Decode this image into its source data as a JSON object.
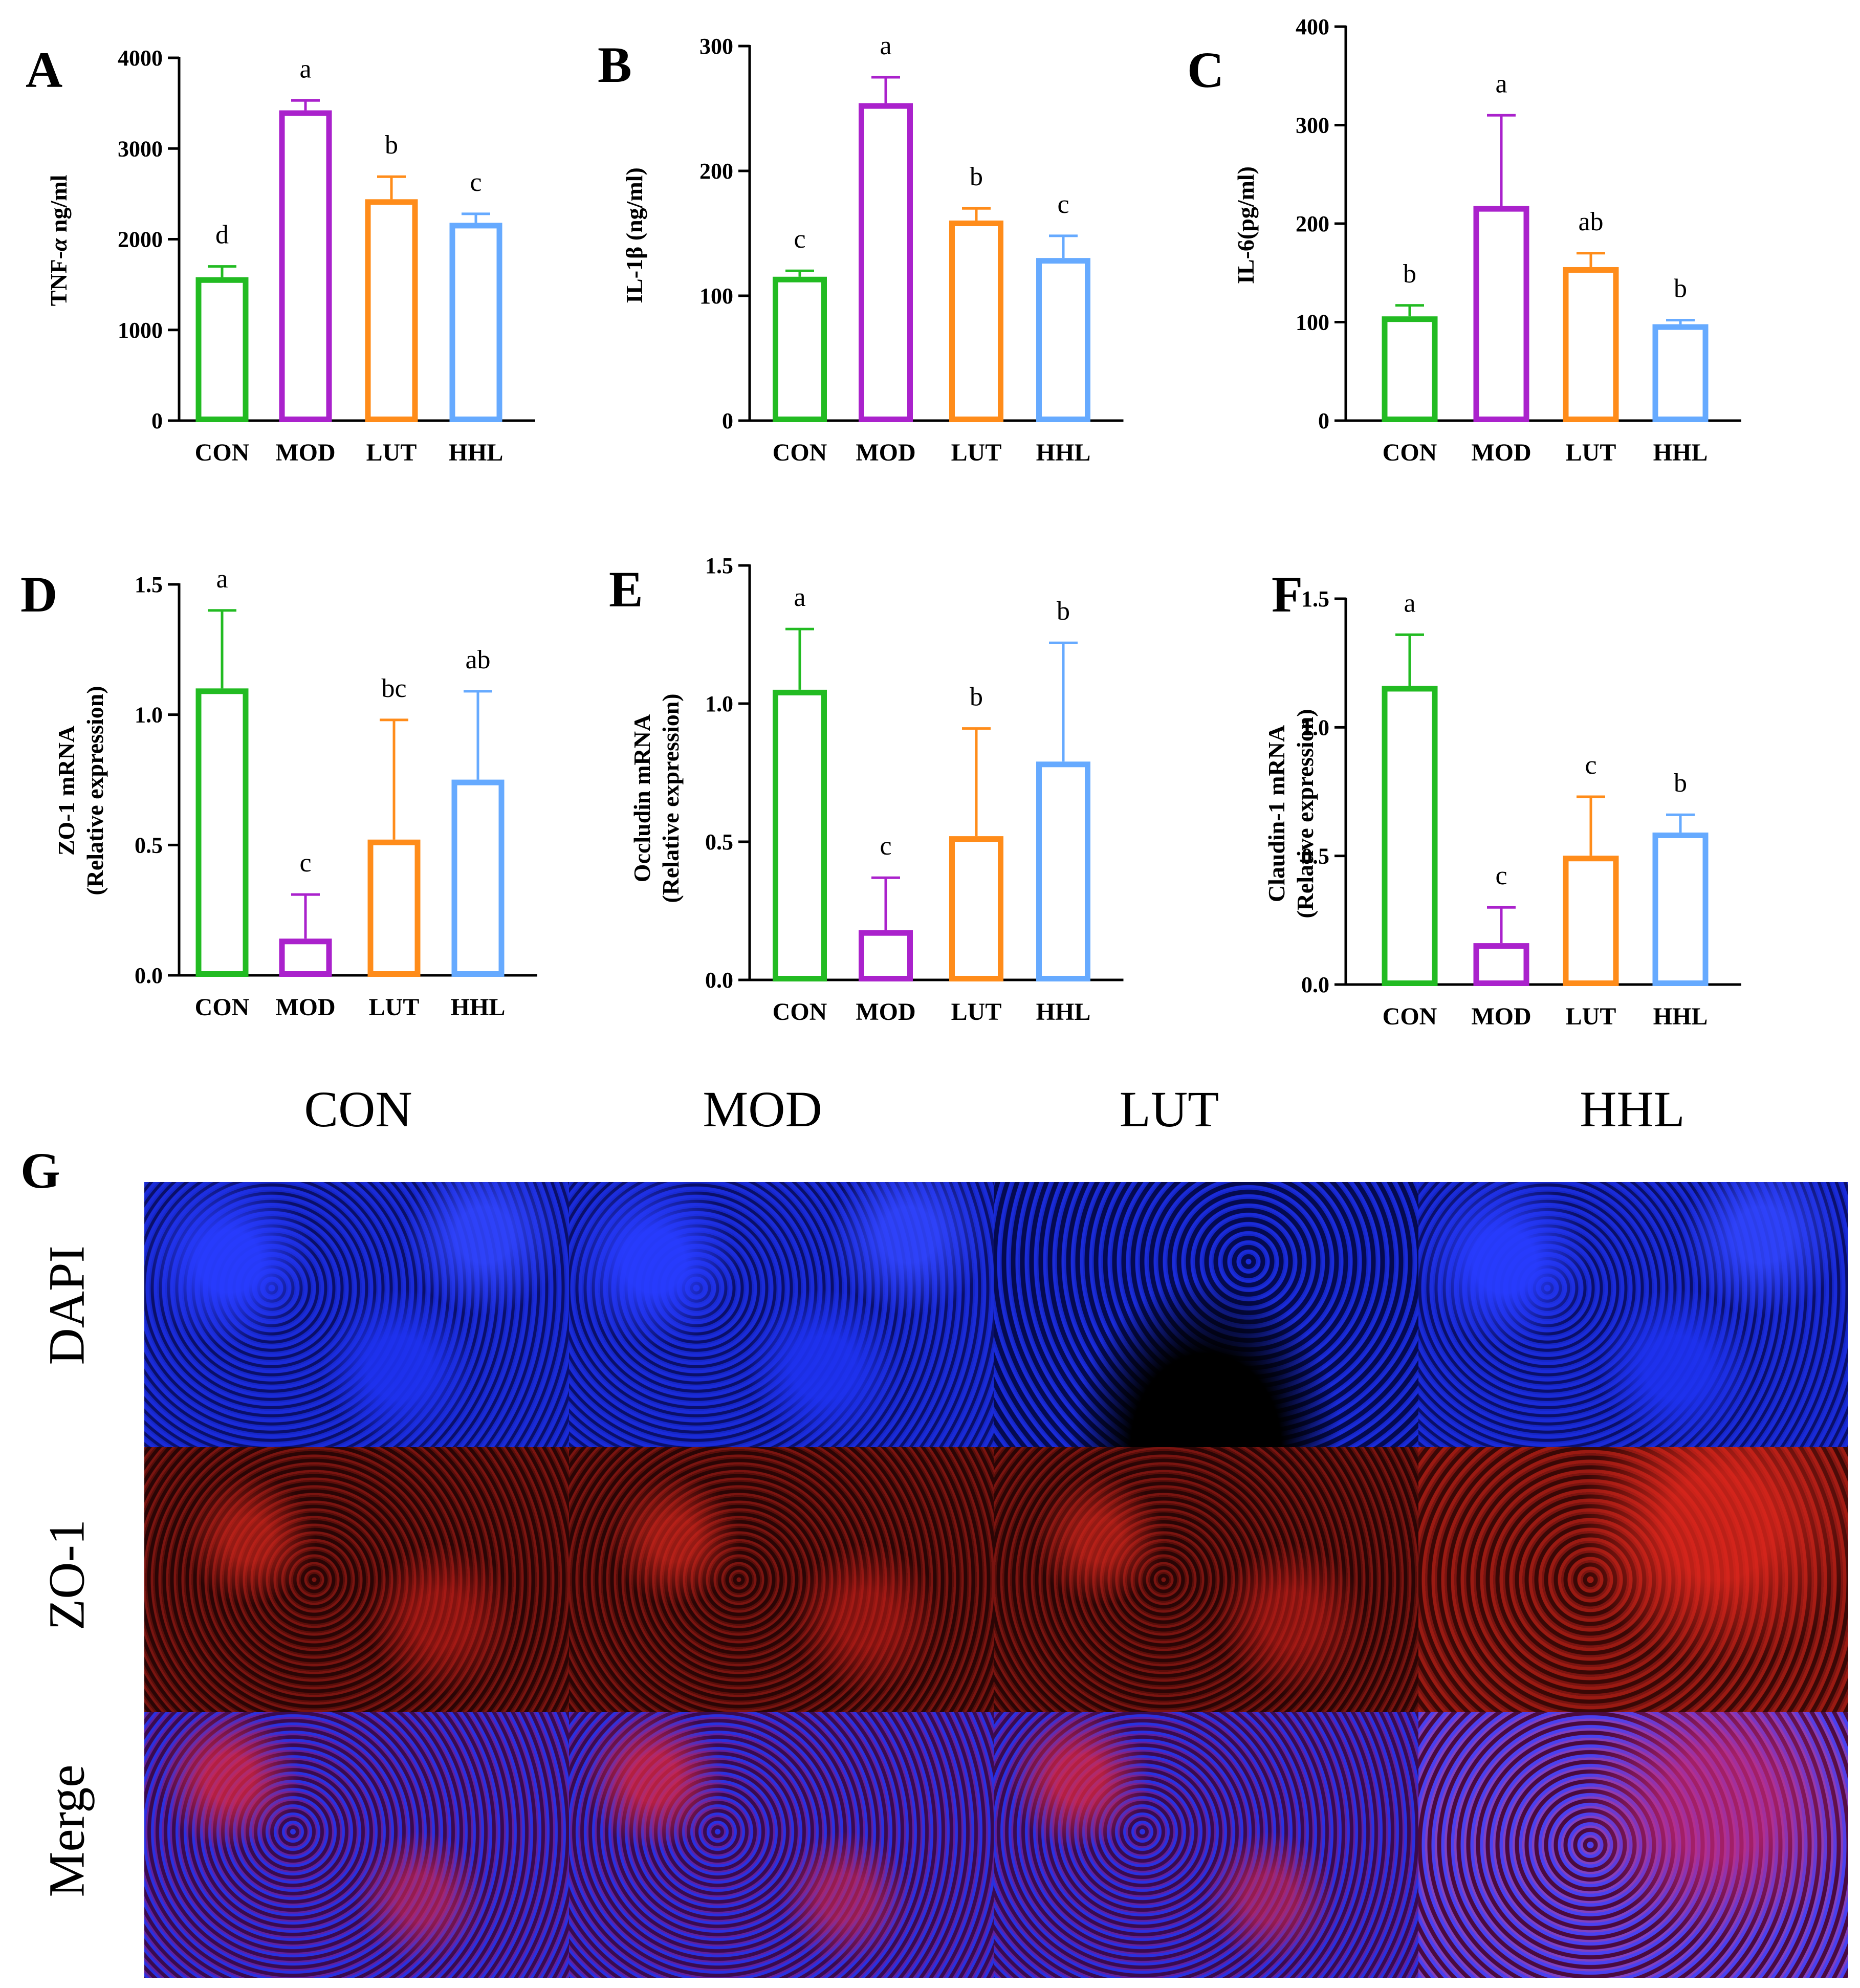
{
  "chart_data": [
    {
      "panel": "A",
      "type": "bar",
      "categories": [
        "CON",
        "MOD",
        "LUT",
        "HHL"
      ],
      "values": [
        1550,
        3390,
        2410,
        2150
      ],
      "errors": [
        150,
        140,
        280,
        130
      ],
      "letters": [
        "d",
        "a",
        "b",
        "c"
      ],
      "ylabel_parts": [
        {
          "text": "TNF-",
          "italic": false
        },
        {
          "text": "α",
          "italic": true
        },
        {
          "text": " ng/ml",
          "italic": false
        }
      ],
      "ylabel_lines": [],
      "ylim": [
        0,
        4000
      ],
      "yticks": [
        0,
        1000,
        2000,
        3000,
        4000
      ],
      "ytick_labels": [
        "0",
        "1000",
        "2000",
        "3000",
        "4000"
      ],
      "colors": [
        "#22bb22",
        "#aa22cc",
        "#ff8c1a",
        "#66aaff"
      ]
    },
    {
      "panel": "B",
      "type": "bar",
      "categories": [
        "CON",
        "MOD",
        "LUT",
        "HHL"
      ],
      "values": [
        113,
        252,
        158,
        128
      ],
      "errors": [
        7,
        23,
        12,
        20
      ],
      "letters": [
        "c",
        "a",
        "b",
        "c"
      ],
      "ylabel_parts": [
        {
          "text": "IL-1β (ng/ml)",
          "italic": false
        }
      ],
      "ylabel_lines": [],
      "ylim": [
        0,
        300
      ],
      "yticks": [
        0,
        100,
        200,
        300
      ],
      "ytick_labels": [
        "0",
        "100",
        "200",
        "300"
      ],
      "colors": [
        "#22bb22",
        "#aa22cc",
        "#ff8c1a",
        "#66aaff"
      ]
    },
    {
      "panel": "C",
      "type": "bar",
      "categories": [
        "CON",
        "MOD",
        "LUT",
        "HHL"
      ],
      "values": [
        103,
        215,
        153,
        95
      ],
      "errors": [
        14,
        95,
        17,
        7
      ],
      "letters": [
        "b",
        "a",
        "ab",
        "b"
      ],
      "ylabel_parts": [
        {
          "text": "IL-6(pg/ml)",
          "italic": false
        }
      ],
      "ylabel_lines": [],
      "ylim": [
        0,
        400
      ],
      "yticks": [
        0,
        100,
        200,
        300,
        400
      ],
      "ytick_labels": [
        "0",
        "100",
        "200",
        "300",
        "400"
      ],
      "colors": [
        "#22bb22",
        "#aa22cc",
        "#ff8c1a",
        "#66aaff"
      ]
    },
    {
      "panel": "D",
      "type": "bar",
      "categories": [
        "CON",
        "MOD",
        "LUT",
        "HHL"
      ],
      "values": [
        1.09,
        0.13,
        0.51,
        0.74
      ],
      "errors": [
        0.31,
        0.18,
        0.47,
        0.35
      ],
      "letters": [
        "a",
        "c",
        "bc",
        "ab"
      ],
      "ylabel_parts": [],
      "ylabel_lines": [
        "ZO-1 mRNA",
        "(Relative expression)"
      ],
      "ylim": [
        0,
        1.5
      ],
      "yticks": [
        0,
        0.5,
        1.0,
        1.5
      ],
      "ytick_labels": [
        "0.0",
        "0.5",
        "1.0",
        "1.5"
      ],
      "colors": [
        "#22bb22",
        "#aa22cc",
        "#ff8c1a",
        "#66aaff"
      ]
    },
    {
      "panel": "E",
      "type": "bar",
      "categories": [
        "CON",
        "MOD",
        "LUT",
        "HHL"
      ],
      "values": [
        1.04,
        0.17,
        0.51,
        0.78
      ],
      "errors": [
        0.23,
        0.2,
        0.4,
        0.44
      ],
      "letters": [
        "a",
        "c",
        "b",
        "b"
      ],
      "ylabel_parts": [],
      "ylabel_lines": [
        "Occludin mRNA",
        "(Relative expression)"
      ],
      "ylim": [
        0,
        1.5
      ],
      "yticks": [
        0,
        0.5,
        1.0,
        1.5
      ],
      "ytick_labels": [
        "0.0",
        "0.5",
        "1.0",
        "1.5"
      ],
      "colors": [
        "#22bb22",
        "#aa22cc",
        "#ff8c1a",
        "#66aaff"
      ]
    },
    {
      "panel": "F",
      "type": "bar",
      "categories": [
        "CON",
        "MOD",
        "LUT",
        "HHL"
      ],
      "values": [
        1.15,
        0.15,
        0.49,
        0.58
      ],
      "errors": [
        0.21,
        0.15,
        0.24,
        0.08
      ],
      "letters": [
        "a",
        "c",
        "c",
        "b"
      ],
      "ylabel_parts": [],
      "ylabel_lines": [
        "Claudin-1 mRNA",
        "(Relative expression)"
      ],
      "ylim": [
        0,
        1.5
      ],
      "yticks": [
        0,
        0.5,
        1.0,
        1.5
      ],
      "ytick_labels": [
        "0.0",
        "0.5",
        "1.0",
        "1.5"
      ],
      "colors": [
        "#22bb22",
        "#aa22cc",
        "#ff8c1a",
        "#66aaff"
      ]
    }
  ],
  "panel_g": {
    "letter": "G",
    "columns": [
      "CON",
      "MOD",
      "LUT",
      "HHL"
    ],
    "rows": [
      "DAPI",
      "ZO-1",
      "Merge"
    ]
  }
}
